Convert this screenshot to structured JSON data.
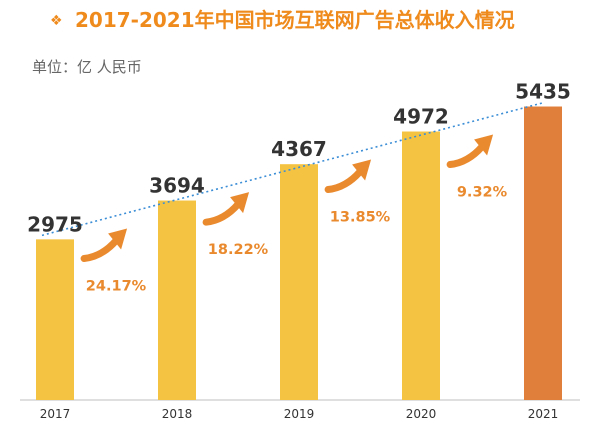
{
  "header": {
    "bullet": "❖",
    "title": "2017-2021年中国市场互联网广告总体收入情况",
    "unit": "单位：亿 人民币"
  },
  "colors": {
    "title": "#ef8a1d",
    "bar": "#f5c342",
    "bar_highlight": "#e07f3c",
    "growth": "#ea8a2e",
    "trend": "#3b8ed6",
    "value_text": "#333333",
    "unit_text": "#666666",
    "axis": "#bfbfbf"
  },
  "chart_data": {
    "type": "bar",
    "title": "2017-2021年中国市场互联网广告总体收入情况",
    "unit": "单位：亿 人民币",
    "categories": [
      "2017",
      "2018",
      "2019",
      "2020",
      "2021"
    ],
    "values": [
      2975,
      3694,
      4367,
      4972,
      5435
    ],
    "highlight_index": 4,
    "growth_rates": [
      "24.17%",
      "18.22%",
      "13.85%",
      "9.32%"
    ],
    "trendline": "dotted",
    "ylim": [
      0,
      6000
    ],
    "grid": false
  }
}
